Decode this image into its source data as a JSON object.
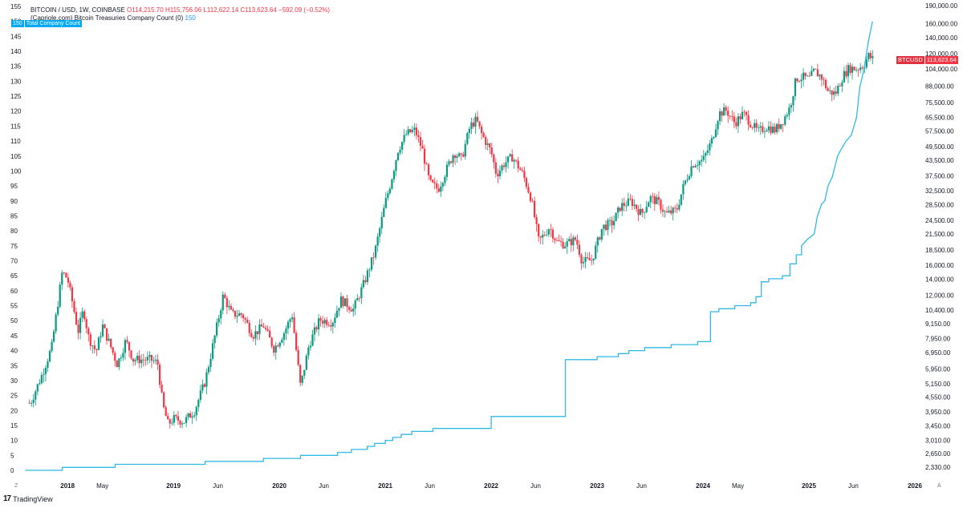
{
  "header": {
    "symbol_line": "BITCOIN / USD, 1W, COINBASE",
    "open": "O114,215.70",
    "high": "H115,756.06",
    "low": "L112,622.14",
    "close": "C113,623.64",
    "change": "−592.09 (−0.52%)",
    "indicator_name": "(Capriole.com) Bitcoin Treasuries Company Count (0)",
    "indicator_value": "150",
    "series_badge_value": "150",
    "series_badge_label": "Total Company Count"
  },
  "price_badge": {
    "symbol": "BTCUSD",
    "value": "113,623.64"
  },
  "footer": {
    "brand": "TradingView",
    "logo": "17"
  },
  "corners": {
    "left": "Z",
    "right": "A"
  },
  "colors": {
    "up": "#089981",
    "down": "#f23645",
    "line": "#2fb9e6",
    "text": "#131722",
    "muted": "#787b86"
  },
  "chart_data": {
    "type": "candlestick+line",
    "left_axis": {
      "min": 0,
      "max": 155,
      "ticks": [
        0,
        5,
        10,
        15,
        20,
        25,
        30,
        35,
        40,
        45,
        50,
        55,
        60,
        65,
        70,
        75,
        80,
        85,
        90,
        95,
        100,
        105,
        110,
        115,
        120,
        125,
        130,
        135,
        140,
        145,
        150,
        155
      ]
    },
    "right_axis": {
      "scale": "log",
      "ticks": [
        2330,
        2650,
        3010,
        3450,
        3950,
        4550,
        5150,
        5950,
        6950,
        7950,
        9150,
        10400,
        12000,
        14000,
        16000,
        18500,
        21500,
        24500,
        28500,
        32500,
        37500,
        43500,
        49500,
        57500,
        65500,
        75500,
        88000,
        104000,
        120000,
        140000,
        160000,
        190000
      ],
      "tick_labels": [
        "2,330.00",
        "2,650.00",
        "3,010.00",
        "3,450.00",
        "3,950.00",
        "4,550.00",
        "5,150.00",
        "5,950.00",
        "6,950.00",
        "7,950.00",
        "9,150.00",
        "10,400.00",
        "12,000.00",
        "14,000.00",
        "16,000.00",
        "18,500.00",
        "21,500.00",
        "24,500.00",
        "28,500.00",
        "32,500.00",
        "37,500.00",
        "43,500.00",
        "49,500.00",
        "57,500.00",
        "65,500.00",
        "75,500.00",
        "88,000.00",
        "104,000.00",
        "120,000.00",
        "140,000.00",
        "160,000.00",
        "190,000.00"
      ]
    },
    "x_axis": {
      "labels": [
        {
          "t": 2018.0,
          "text": "2018"
        },
        {
          "t": 2018.33,
          "text": "May"
        },
        {
          "t": 2019.0,
          "text": "2019"
        },
        {
          "t": 2019.42,
          "text": "Jun"
        },
        {
          "t": 2020.0,
          "text": "2020"
        },
        {
          "t": 2020.42,
          "text": "Jun"
        },
        {
          "t": 2021.0,
          "text": "2021"
        },
        {
          "t": 2021.42,
          "text": "Jun"
        },
        {
          "t": 2022.0,
          "text": "2022"
        },
        {
          "t": 2022.42,
          "text": "Jun"
        },
        {
          "t": 2023.0,
          "text": "2023"
        },
        {
          "t": 2023.42,
          "text": "Jun"
        },
        {
          "t": 2024.0,
          "text": "2024"
        },
        {
          "t": 2024.33,
          "text": "May"
        },
        {
          "t": 2025.0,
          "text": "2025"
        },
        {
          "t": 2025.42,
          "text": "Jun"
        },
        {
          "t": 2026.0,
          "text": "2026"
        }
      ],
      "range": [
        2017.6,
        2026.3
      ]
    },
    "btc_price_path": [
      [
        2017.65,
        4300
      ],
      [
        2017.75,
        5500
      ],
      [
        2017.85,
        7300
      ],
      [
        2017.95,
        15000
      ],
      [
        2018.0,
        14000
      ],
      [
        2018.05,
        11000
      ],
      [
        2018.1,
        8500
      ],
      [
        2018.15,
        10500
      ],
      [
        2018.2,
        8000
      ],
      [
        2018.27,
        7000
      ],
      [
        2018.33,
        9000
      ],
      [
        2018.4,
        7500
      ],
      [
        2018.47,
        6200
      ],
      [
        2018.55,
        7800
      ],
      [
        2018.62,
        6500
      ],
      [
        2018.7,
        6500
      ],
      [
        2018.78,
        6500
      ],
      [
        2018.85,
        6300
      ],
      [
        2018.9,
        4200
      ],
      [
        2018.95,
        3500
      ],
      [
        2019.0,
        3700
      ],
      [
        2019.1,
        3600
      ],
      [
        2019.2,
        4000
      ],
      [
        2019.3,
        5300
      ],
      [
        2019.4,
        8500
      ],
      [
        2019.47,
        12000
      ],
      [
        2019.55,
        10000
      ],
      [
        2019.65,
        10000
      ],
      [
        2019.75,
        8200
      ],
      [
        2019.85,
        9000
      ],
      [
        2019.95,
        7200
      ],
      [
        2020.05,
        8500
      ],
      [
        2020.12,
        10000
      ],
      [
        2020.2,
        5000
      ],
      [
        2020.28,
        7500
      ],
      [
        2020.38,
        9500
      ],
      [
        2020.5,
        9300
      ],
      [
        2020.58,
        11500
      ],
      [
        2020.7,
        10500
      ],
      [
        2020.8,
        13500
      ],
      [
        2020.9,
        18000
      ],
      [
        2021.0,
        29000
      ],
      [
        2021.05,
        35000
      ],
      [
        2021.12,
        48000
      ],
      [
        2021.2,
        56000
      ],
      [
        2021.28,
        58000
      ],
      [
        2021.35,
        48000
      ],
      [
        2021.42,
        35000
      ],
      [
        2021.5,
        33000
      ],
      [
        2021.58,
        40000
      ],
      [
        2021.65,
        47000
      ],
      [
        2021.72,
        44000
      ],
      [
        2021.8,
        60000
      ],
      [
        2021.86,
        64000
      ],
      [
        2021.9,
        57000
      ],
      [
        2022.0,
        47000
      ],
      [
        2022.05,
        38000
      ],
      [
        2022.12,
        42000
      ],
      [
        2022.2,
        45000
      ],
      [
        2022.3,
        38000
      ],
      [
        2022.38,
        30000
      ],
      [
        2022.45,
        20000
      ],
      [
        2022.55,
        23000
      ],
      [
        2022.62,
        20000
      ],
      [
        2022.7,
        19500
      ],
      [
        2022.8,
        20500
      ],
      [
        2022.86,
        16500
      ],
      [
        2022.95,
        16800
      ],
      [
        2023.05,
        23000
      ],
      [
        2023.15,
        24000
      ],
      [
        2023.22,
        28000
      ],
      [
        2023.32,
        29500
      ],
      [
        2023.42,
        26000
      ],
      [
        2023.5,
        30500
      ],
      [
        2023.58,
        29000
      ],
      [
        2023.65,
        26000
      ],
      [
        2023.75,
        27000
      ],
      [
        2023.82,
        34500
      ],
      [
        2023.9,
        42000
      ],
      [
        2024.0,
        43500
      ],
      [
        2024.08,
        52000
      ],
      [
        2024.15,
        68000
      ],
      [
        2024.22,
        70000
      ],
      [
        2024.3,
        62000
      ],
      [
        2024.38,
        68000
      ],
      [
        2024.45,
        62000
      ],
      [
        2024.52,
        57000
      ],
      [
        2024.6,
        60000
      ],
      [
        2024.68,
        58000
      ],
      [
        2024.75,
        63000
      ],
      [
        2024.82,
        72000
      ],
      [
        2024.88,
        95000
      ],
      [
        2024.95,
        96000
      ],
      [
        2025.0,
        94000
      ],
      [
        2025.05,
        102000
      ],
      [
        2025.12,
        96000
      ],
      [
        2025.18,
        84000
      ],
      [
        2025.25,
        82000
      ],
      [
        2025.32,
        97000
      ],
      [
        2025.38,
        105000
      ],
      [
        2025.45,
        104000
      ],
      [
        2025.52,
        108000
      ],
      [
        2025.56,
        118000
      ],
      [
        2025.6,
        114000
      ]
    ],
    "company_count_steps": [
      [
        2017.6,
        0
      ],
      [
        2017.95,
        0
      ],
      [
        2017.95,
        1
      ],
      [
        2018.45,
        1
      ],
      [
        2018.45,
        2
      ],
      [
        2019.3,
        2
      ],
      [
        2019.3,
        3
      ],
      [
        2019.85,
        3
      ],
      [
        2019.85,
        4
      ],
      [
        2020.2,
        4
      ],
      [
        2020.2,
        5
      ],
      [
        2020.55,
        5
      ],
      [
        2020.55,
        6
      ],
      [
        2020.68,
        6
      ],
      [
        2020.68,
        7
      ],
      [
        2020.83,
        7
      ],
      [
        2020.83,
        8
      ],
      [
        2020.9,
        8
      ],
      [
        2020.9,
        9
      ],
      [
        2021.0,
        9
      ],
      [
        2021.0,
        10
      ],
      [
        2021.07,
        10
      ],
      [
        2021.07,
        11
      ],
      [
        2021.15,
        11
      ],
      [
        2021.15,
        12
      ],
      [
        2021.25,
        12
      ],
      [
        2021.25,
        13
      ],
      [
        2021.45,
        13
      ],
      [
        2021.45,
        14
      ],
      [
        2022.0,
        14
      ],
      [
        2022.0,
        18
      ],
      [
        2022.7,
        18
      ],
      [
        2022.7,
        37
      ],
      [
        2023.0,
        37
      ],
      [
        2023.0,
        38
      ],
      [
        2023.2,
        38
      ],
      [
        2023.2,
        39
      ],
      [
        2023.3,
        39
      ],
      [
        2023.3,
        40
      ],
      [
        2023.45,
        40
      ],
      [
        2023.45,
        41
      ],
      [
        2023.7,
        41
      ],
      [
        2023.7,
        42
      ],
      [
        2023.95,
        42
      ],
      [
        2023.95,
        43
      ],
      [
        2024.07,
        43
      ],
      [
        2024.07,
        53
      ],
      [
        2024.15,
        53
      ],
      [
        2024.15,
        54
      ],
      [
        2024.3,
        54
      ],
      [
        2024.3,
        55
      ],
      [
        2024.45,
        55
      ],
      [
        2024.45,
        56
      ],
      [
        2024.5,
        56
      ],
      [
        2024.5,
        58
      ],
      [
        2024.55,
        58
      ],
      [
        2024.55,
        63
      ],
      [
        2024.62,
        63
      ],
      [
        2024.62,
        64
      ],
      [
        2024.75,
        64
      ],
      [
        2024.75,
        65
      ],
      [
        2024.82,
        65
      ],
      [
        2024.82,
        69
      ],
      [
        2024.88,
        69
      ],
      [
        2024.88,
        72
      ],
      [
        2024.93,
        72
      ],
      [
        2024.93,
        75
      ],
      [
        2024.98,
        77
      ],
      [
        2025.05,
        79
      ],
      [
        2025.08,
        85
      ],
      [
        2025.12,
        89
      ],
      [
        2025.15,
        90
      ],
      [
        2025.18,
        95
      ],
      [
        2025.22,
        98
      ],
      [
        2025.27,
        105
      ],
      [
        2025.3,
        107
      ],
      [
        2025.35,
        110
      ],
      [
        2025.4,
        112
      ],
      [
        2025.45,
        118
      ],
      [
        2025.48,
        128
      ],
      [
        2025.52,
        134
      ],
      [
        2025.56,
        143
      ],
      [
        2025.6,
        150
      ]
    ]
  }
}
